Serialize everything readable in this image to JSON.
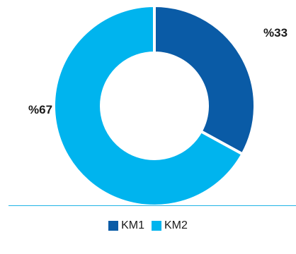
{
  "chart_data": {
    "type": "pie",
    "donut": true,
    "categories": [
      "KM1",
      "KM2"
    ],
    "values": [
      33,
      67
    ],
    "value_labels": [
      "%33",
      "%67"
    ],
    "colors": [
      "#0a5ba6",
      "#00b4ee"
    ],
    "title": "",
    "legend_position": "bottom"
  }
}
